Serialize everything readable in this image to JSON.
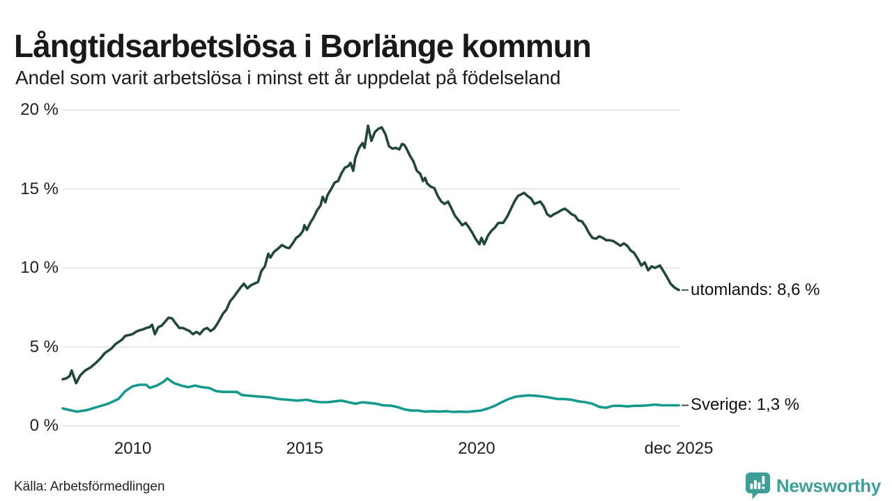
{
  "header": {
    "title": "Långtidsarbetslösa i Borlänge kommun",
    "subtitle": "Andel som varit arbetslösa i minst ett år uppdelat på födelseland"
  },
  "footer": {
    "source": "Källa: Arbetsförmedlingen",
    "brand": "Newsworthy"
  },
  "colors": {
    "utomlands_line": "#21463d",
    "sverige_line": "#149a8c",
    "grid": "#e7e7ec",
    "tick_text": "#1f1f1f",
    "end_dash": "#4a4a4a",
    "brand_teal": "#3d9f97",
    "background": "#ffffff"
  },
  "chart_data": {
    "type": "line",
    "title": "Långtidsarbetslösa i Borlänge kommun",
    "subtitle": "Andel som varit arbetslösa i minst ett år uppdelat på födelseland",
    "unit": "%",
    "grid": true,
    "legend_position": "line-end-labels-right",
    "x_axis": {
      "range": [
        2008.0,
        2026.0
      ],
      "ticks": [
        {
          "label": "2010",
          "year": 2010.04
        },
        {
          "label": "2015",
          "year": 2015.04
        },
        {
          "label": "2020",
          "year": 2020.04
        },
        {
          "label": "dec 2025",
          "year": 2025.92
        }
      ]
    },
    "y_axis": {
      "range": [
        0,
        20
      ],
      "values": [
        0,
        5,
        10,
        15,
        20
      ],
      "labels": [
        "0 %",
        "5 %",
        "10 %",
        "15 %",
        "20 %"
      ]
    },
    "series": [
      {
        "name": "utomlands",
        "end_label": "utomlands: 8,6 %",
        "end_value": 8.6,
        "color": "#21463d",
        "points": [
          [
            2008.0,
            2.95
          ],
          [
            2008.1,
            3.0
          ],
          [
            2008.2,
            3.15
          ],
          [
            2008.26,
            3.5
          ],
          [
            2008.39,
            2.7
          ],
          [
            2008.51,
            3.2
          ],
          [
            2008.65,
            3.5
          ],
          [
            2008.81,
            3.7
          ],
          [
            2008.97,
            4.0
          ],
          [
            2009.11,
            4.3
          ],
          [
            2009.22,
            4.6
          ],
          [
            2009.32,
            4.75
          ],
          [
            2009.42,
            4.9
          ],
          [
            2009.52,
            5.15
          ],
          [
            2009.62,
            5.3
          ],
          [
            2009.72,
            5.45
          ],
          [
            2009.82,
            5.7
          ],
          [
            2009.93,
            5.75
          ],
          [
            2010.03,
            5.8
          ],
          [
            2010.13,
            5.95
          ],
          [
            2010.23,
            6.05
          ],
          [
            2010.33,
            6.1
          ],
          [
            2010.43,
            6.2
          ],
          [
            2010.53,
            6.25
          ],
          [
            2010.6,
            6.4
          ],
          [
            2010.68,
            5.8
          ],
          [
            2010.78,
            6.25
          ],
          [
            2010.88,
            6.35
          ],
          [
            2010.98,
            6.6
          ],
          [
            2011.08,
            6.85
          ],
          [
            2011.18,
            6.8
          ],
          [
            2011.28,
            6.5
          ],
          [
            2011.39,
            6.2
          ],
          [
            2011.49,
            6.2
          ],
          [
            2011.59,
            6.1
          ],
          [
            2011.69,
            6.0
          ],
          [
            2011.79,
            5.8
          ],
          [
            2011.89,
            5.95
          ],
          [
            2011.99,
            5.8
          ],
          [
            2012.1,
            6.1
          ],
          [
            2012.2,
            6.2
          ],
          [
            2012.3,
            6.0
          ],
          [
            2012.4,
            6.15
          ],
          [
            2012.48,
            6.4
          ],
          [
            2012.56,
            6.7
          ],
          [
            2012.66,
            7.1
          ],
          [
            2012.76,
            7.35
          ],
          [
            2012.87,
            7.9
          ],
          [
            2012.97,
            8.15
          ],
          [
            2013.07,
            8.45
          ],
          [
            2013.17,
            8.75
          ],
          [
            2013.27,
            9.0
          ],
          [
            2013.37,
            8.7
          ],
          [
            2013.47,
            8.9
          ],
          [
            2013.57,
            9.0
          ],
          [
            2013.68,
            9.1
          ],
          [
            2013.78,
            9.8
          ],
          [
            2013.88,
            10.1
          ],
          [
            2013.98,
            10.9
          ],
          [
            2014.04,
            10.65
          ],
          [
            2014.14,
            11.0
          ],
          [
            2014.28,
            11.25
          ],
          [
            2014.38,
            11.45
          ],
          [
            2014.49,
            11.3
          ],
          [
            2014.59,
            11.25
          ],
          [
            2014.69,
            11.55
          ],
          [
            2014.79,
            11.9
          ],
          [
            2014.89,
            12.05
          ],
          [
            2014.99,
            12.35
          ],
          [
            2015.03,
            12.7
          ],
          [
            2015.1,
            12.4
          ],
          [
            2015.2,
            12.85
          ],
          [
            2015.3,
            13.2
          ],
          [
            2015.4,
            13.65
          ],
          [
            2015.5,
            13.95
          ],
          [
            2015.56,
            14.5
          ],
          [
            2015.64,
            14.15
          ],
          [
            2015.7,
            14.6
          ],
          [
            2015.81,
            15.0
          ],
          [
            2015.91,
            15.4
          ],
          [
            2016.01,
            15.5
          ],
          [
            2016.11,
            16.0
          ],
          [
            2016.21,
            16.35
          ],
          [
            2016.31,
            16.45
          ],
          [
            2016.37,
            16.65
          ],
          [
            2016.45,
            16.15
          ],
          [
            2016.51,
            16.95
          ],
          [
            2016.62,
            17.6
          ],
          [
            2016.72,
            17.9
          ],
          [
            2016.78,
            17.6
          ],
          [
            2016.88,
            19.0
          ],
          [
            2016.98,
            18.05
          ],
          [
            2017.08,
            18.6
          ],
          [
            2017.18,
            18.8
          ],
          [
            2017.28,
            18.9
          ],
          [
            2017.39,
            18.45
          ],
          [
            2017.49,
            17.7
          ],
          [
            2017.59,
            17.55
          ],
          [
            2017.69,
            17.6
          ],
          [
            2017.79,
            17.5
          ],
          [
            2017.87,
            17.85
          ],
          [
            2017.93,
            17.8
          ],
          [
            2017.99,
            17.6
          ],
          [
            2018.1,
            17.1
          ],
          [
            2018.2,
            16.75
          ],
          [
            2018.3,
            16.15
          ],
          [
            2018.4,
            15.95
          ],
          [
            2018.48,
            15.5
          ],
          [
            2018.54,
            15.7
          ],
          [
            2018.6,
            15.35
          ],
          [
            2018.7,
            15.15
          ],
          [
            2018.81,
            15.05
          ],
          [
            2018.91,
            14.55
          ],
          [
            2019.01,
            14.2
          ],
          [
            2019.11,
            14.05
          ],
          [
            2019.21,
            14.2
          ],
          [
            2019.31,
            13.75
          ],
          [
            2019.41,
            13.3
          ],
          [
            2019.52,
            13.0
          ],
          [
            2019.62,
            12.7
          ],
          [
            2019.72,
            12.85
          ],
          [
            2019.82,
            12.55
          ],
          [
            2019.92,
            12.2
          ],
          [
            2020.02,
            11.8
          ],
          [
            2020.12,
            11.5
          ],
          [
            2020.18,
            11.9
          ],
          [
            2020.26,
            11.5
          ],
          [
            2020.37,
            12.05
          ],
          [
            2020.47,
            12.35
          ],
          [
            2020.57,
            12.55
          ],
          [
            2020.67,
            12.85
          ],
          [
            2020.81,
            12.85
          ],
          [
            2020.93,
            13.25
          ],
          [
            2021.04,
            13.75
          ],
          [
            2021.14,
            14.2
          ],
          [
            2021.24,
            14.55
          ],
          [
            2021.42,
            14.75
          ],
          [
            2021.52,
            14.55
          ],
          [
            2021.62,
            14.4
          ],
          [
            2021.72,
            14.05
          ],
          [
            2021.89,
            14.2
          ],
          [
            2021.99,
            13.9
          ],
          [
            2022.09,
            13.4
          ],
          [
            2022.19,
            13.25
          ],
          [
            2022.29,
            13.4
          ],
          [
            2022.39,
            13.5
          ],
          [
            2022.5,
            13.65
          ],
          [
            2022.6,
            13.75
          ],
          [
            2022.7,
            13.6
          ],
          [
            2022.8,
            13.4
          ],
          [
            2022.9,
            13.3
          ],
          [
            2023.0,
            13.0
          ],
          [
            2023.1,
            12.95
          ],
          [
            2023.2,
            12.65
          ],
          [
            2023.31,
            12.2
          ],
          [
            2023.41,
            11.9
          ],
          [
            2023.51,
            11.85
          ],
          [
            2023.61,
            12.0
          ],
          [
            2023.71,
            11.9
          ],
          [
            2023.81,
            11.75
          ],
          [
            2023.91,
            11.75
          ],
          [
            2024.01,
            11.7
          ],
          [
            2024.12,
            11.55
          ],
          [
            2024.22,
            11.4
          ],
          [
            2024.32,
            11.55
          ],
          [
            2024.42,
            11.4
          ],
          [
            2024.52,
            11.1
          ],
          [
            2024.62,
            10.95
          ],
          [
            2024.72,
            10.6
          ],
          [
            2024.83,
            10.15
          ],
          [
            2024.93,
            10.35
          ],
          [
            2025.03,
            9.85
          ],
          [
            2025.13,
            10.1
          ],
          [
            2025.23,
            10.0
          ],
          [
            2025.37,
            10.15
          ],
          [
            2025.47,
            9.8
          ],
          [
            2025.58,
            9.4
          ],
          [
            2025.68,
            9.0
          ],
          [
            2025.8,
            8.75
          ],
          [
            2025.92,
            8.6
          ]
        ]
      },
      {
        "name": "Sverige",
        "end_label": "Sverige: 1,3 %",
        "end_value": 1.3,
        "color": "#149a8c",
        "points": [
          [
            2008.0,
            1.1
          ],
          [
            2008.2,
            1.0
          ],
          [
            2008.41,
            0.9
          ],
          [
            2008.71,
            1.0
          ],
          [
            2009.01,
            1.2
          ],
          [
            2009.32,
            1.4
          ],
          [
            2009.62,
            1.7
          ],
          [
            2009.82,
            2.2
          ],
          [
            2010.03,
            2.5
          ],
          [
            2010.23,
            2.6
          ],
          [
            2010.43,
            2.6
          ],
          [
            2010.53,
            2.4
          ],
          [
            2010.74,
            2.55
          ],
          [
            2010.94,
            2.8
          ],
          [
            2011.04,
            3.0
          ],
          [
            2011.24,
            2.7
          ],
          [
            2011.45,
            2.55
          ],
          [
            2011.65,
            2.45
          ],
          [
            2011.85,
            2.55
          ],
          [
            2012.05,
            2.45
          ],
          [
            2012.26,
            2.4
          ],
          [
            2012.46,
            2.2
          ],
          [
            2012.66,
            2.15
          ],
          [
            2012.87,
            2.15
          ],
          [
            2013.07,
            2.15
          ],
          [
            2013.21,
            1.95
          ],
          [
            2013.47,
            1.9
          ],
          [
            2013.74,
            1.85
          ],
          [
            2014.02,
            1.8
          ],
          [
            2014.28,
            1.7
          ],
          [
            2014.55,
            1.65
          ],
          [
            2014.83,
            1.6
          ],
          [
            2015.1,
            1.65
          ],
          [
            2015.3,
            1.55
          ],
          [
            2015.5,
            1.5
          ],
          [
            2015.7,
            1.5
          ],
          [
            2015.91,
            1.55
          ],
          [
            2016.11,
            1.6
          ],
          [
            2016.31,
            1.5
          ],
          [
            2016.51,
            1.4
          ],
          [
            2016.72,
            1.5
          ],
          [
            2016.92,
            1.45
          ],
          [
            2017.12,
            1.4
          ],
          [
            2017.32,
            1.3
          ],
          [
            2017.53,
            1.28
          ],
          [
            2017.73,
            1.2
          ],
          [
            2017.93,
            1.05
          ],
          [
            2018.14,
            0.97
          ],
          [
            2018.34,
            0.97
          ],
          [
            2018.54,
            0.9
          ],
          [
            2018.74,
            0.93
          ],
          [
            2018.95,
            0.9
          ],
          [
            2019.15,
            0.93
          ],
          [
            2019.35,
            0.88
          ],
          [
            2019.55,
            0.9
          ],
          [
            2019.76,
            0.88
          ],
          [
            2019.96,
            0.93
          ],
          [
            2020.16,
            0.97
          ],
          [
            2020.37,
            1.1
          ],
          [
            2020.57,
            1.27
          ],
          [
            2020.77,
            1.5
          ],
          [
            2020.97,
            1.7
          ],
          [
            2021.18,
            1.85
          ],
          [
            2021.38,
            1.9
          ],
          [
            2021.58,
            1.93
          ],
          [
            2021.79,
            1.9
          ],
          [
            2021.99,
            1.85
          ],
          [
            2022.19,
            1.78
          ],
          [
            2022.39,
            1.7
          ],
          [
            2022.6,
            1.7
          ],
          [
            2022.8,
            1.65
          ],
          [
            2023.0,
            1.55
          ],
          [
            2023.2,
            1.5
          ],
          [
            2023.41,
            1.4
          ],
          [
            2023.61,
            1.2
          ],
          [
            2023.81,
            1.15
          ],
          [
            2024.01,
            1.27
          ],
          [
            2024.22,
            1.27
          ],
          [
            2024.42,
            1.23
          ],
          [
            2024.62,
            1.27
          ],
          [
            2024.82,
            1.27
          ],
          [
            2025.03,
            1.3
          ],
          [
            2025.23,
            1.35
          ],
          [
            2025.43,
            1.3
          ],
          [
            2025.63,
            1.3
          ],
          [
            2025.92,
            1.3
          ]
        ]
      }
    ]
  }
}
